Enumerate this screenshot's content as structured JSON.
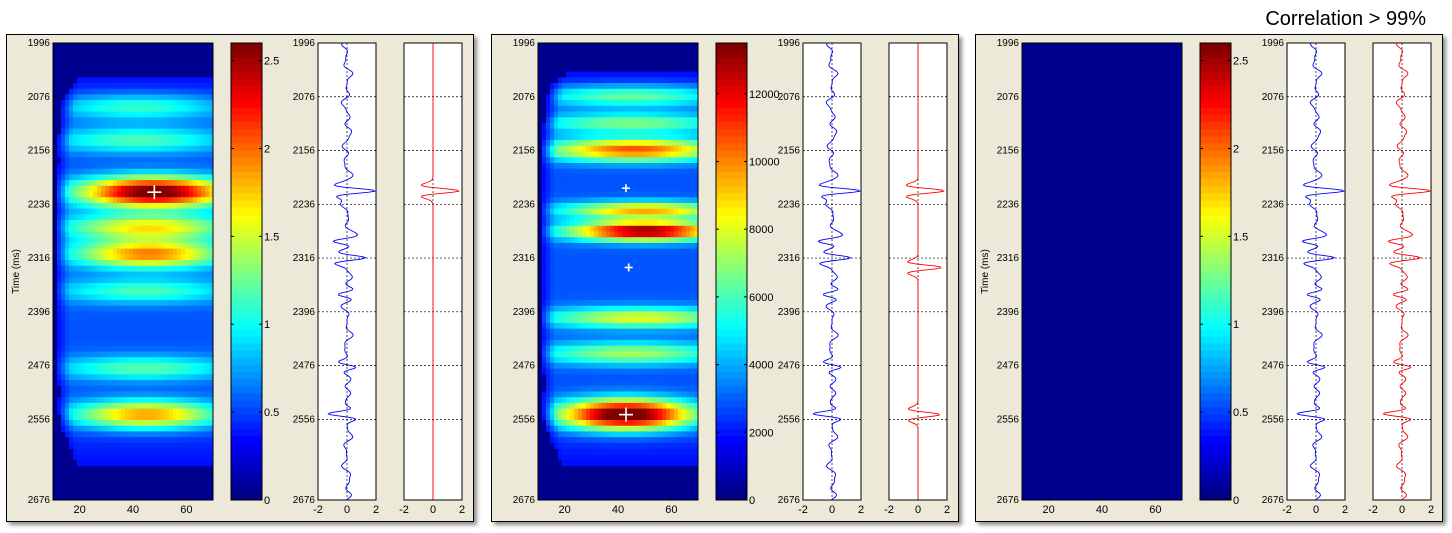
{
  "caption": "Correlation > 99%",
  "chart_data": [
    {
      "type": "heatmap",
      "title": "",
      "ylabel": "Time (ms)",
      "ylim": [
        1996,
        2676
      ],
      "y_ticks": [
        "1996",
        "2076",
        "2156",
        "2236",
        "2316",
        "2396",
        "2476",
        "2556",
        "2676"
      ],
      "xlim": [
        10,
        70
      ],
      "x_ticks": [
        "20",
        "40",
        "60"
      ],
      "colorbar": {
        "min": 0,
        "max": 2.6,
        "ticks": [
          "0",
          "0.5",
          "1",
          "1.5",
          "2",
          "2.5"
        ]
      },
      "blobs": [
        {
          "t": 2091,
          "x": 42,
          "amp": 0.75,
          "w": 25,
          "h": 14
        },
        {
          "t": 2140,
          "x": 42,
          "amp": 0.75,
          "w": 25,
          "h": 14
        },
        {
          "t": 2218,
          "x": 48,
          "amp": 2.45,
          "w": 20,
          "h": 16
        },
        {
          "t": 2270,
          "x": 46,
          "amp": 1.25,
          "w": 23,
          "h": 13
        },
        {
          "t": 2310,
          "x": 46,
          "amp": 1.6,
          "w": 20,
          "h": 15
        },
        {
          "t": 2365,
          "x": 44,
          "amp": 0.7,
          "w": 24,
          "h": 13
        },
        {
          "t": 2480,
          "x": 44,
          "amp": 0.75,
          "w": 24,
          "h": 13
        },
        {
          "t": 2549,
          "x": 45,
          "amp": 1.55,
          "w": 20,
          "h": 15
        }
      ],
      "markers": [
        {
          "x": 48,
          "t": 2218,
          "size": "large"
        }
      ],
      "traces": [
        {
          "color": "#0000ff",
          "xlim": [
            -2,
            2
          ],
          "x_ticks": [
            "-2",
            "0",
            "2"
          ],
          "events": [
            {
              "t": 2216,
              "a": 1.9,
              "w": 7
            },
            {
              "t": 2291,
              "a": -0.9,
              "w": 7
            },
            {
              "t": 2316,
              "a": 1.3,
              "w": 7
            },
            {
              "t": 2370,
              "a": -0.7,
              "w": 7
            },
            {
              "t": 2478,
              "a": 0.8,
              "w": 7
            },
            {
              "t": 2548,
              "a": -1.4,
              "w": 7
            }
          ],
          "noise": 0.35
        },
        {
          "color": "#ff0000",
          "xlim": [
            -2,
            2
          ],
          "x_ticks": [
            "-2",
            "0",
            "2"
          ],
          "events": [
            {
              "t": 2216,
              "a": 1.8,
              "w": 7
            }
          ],
          "noise": 0
        }
      ]
    },
    {
      "type": "heatmap",
      "title": "",
      "ylabel": "",
      "ylim": [
        1996,
        2676
      ],
      "y_ticks": [
        "1996",
        "2076",
        "2156",
        "2236",
        "2316",
        "2396",
        "2476",
        "2556",
        "2676"
      ],
      "xlim": [
        10,
        70
      ],
      "x_ticks": [
        "20",
        "40",
        "60"
      ],
      "colorbar": {
        "min": 0,
        "max": 13500,
        "ticks": [
          "0",
          "2000",
          "4000",
          "6000",
          "8000",
          "10000",
          "12000"
        ]
      },
      "blobs": [
        {
          "t": 2075,
          "x": 45,
          "amp": 4800,
          "w": 28,
          "h": 12
        },
        {
          "t": 2115,
          "x": 45,
          "amp": 4800,
          "w": 28,
          "h": 11
        },
        {
          "t": 2155,
          "x": 46,
          "amp": 9000,
          "w": 24,
          "h": 12
        },
        {
          "t": 2245,
          "x": 50,
          "amp": 7500,
          "w": 22,
          "h": 9
        },
        {
          "t": 2276,
          "x": 50,
          "amp": 12000,
          "w": 20,
          "h": 10
        },
        {
          "t": 2405,
          "x": 48,
          "amp": 6000,
          "w": 26,
          "h": 11
        },
        {
          "t": 2458,
          "x": 45,
          "amp": 5000,
          "w": 26,
          "h": 12
        },
        {
          "t": 2549,
          "x": 43,
          "amp": 13500,
          "w": 18,
          "h": 16
        }
      ],
      "markers": [
        {
          "x": 43,
          "t": 2212,
          "size": "small"
        },
        {
          "x": 44,
          "t": 2330,
          "size": "small"
        },
        {
          "x": 43,
          "t": 2549,
          "size": "large"
        }
      ],
      "traces": [
        {
          "color": "#0000ff",
          "xlim": [
            -2,
            2
          ],
          "x_ticks": [
            "-2",
            "0",
            "2"
          ],
          "events": [
            {
              "t": 2216,
              "a": 1.9,
              "w": 7
            },
            {
              "t": 2291,
              "a": -0.9,
              "w": 7
            },
            {
              "t": 2316,
              "a": 1.3,
              "w": 7
            },
            {
              "t": 2370,
              "a": -0.7,
              "w": 7
            },
            {
              "t": 2478,
              "a": 0.8,
              "w": 7
            },
            {
              "t": 2548,
              "a": -1.4,
              "w": 7
            }
          ],
          "noise": 0.35
        },
        {
          "color": "#ff0000",
          "xlim": [
            -2,
            2
          ],
          "x_ticks": [
            "-2",
            "0",
            "2"
          ],
          "events": [
            {
              "t": 2216,
              "a": 1.8,
              "w": 7
            },
            {
              "t": 2330,
              "a": 1.6,
              "w": 7
            },
            {
              "t": 2549,
              "a": 1.5,
              "w": 7
            }
          ],
          "noise": 0
        }
      ]
    },
    {
      "type": "heatmap",
      "title": "",
      "ylabel": "Time (ms)",
      "ylim": [
        1996,
        2676
      ],
      "y_ticks": [
        "1996",
        "2076",
        "2156",
        "2236",
        "2316",
        "2396",
        "2476",
        "2556",
        "2676"
      ],
      "xlim": [
        10,
        70
      ],
      "x_ticks": [
        "20",
        "40",
        "60"
      ],
      "colorbar": {
        "min": 0,
        "max": 2.6,
        "ticks": [
          "0",
          "0.5",
          "1",
          "1.5",
          "2",
          "2.5"
        ]
      },
      "blobs": [],
      "markers": [],
      "traces": [
        {
          "color": "#0000ff",
          "xlim": [
            -2,
            2
          ],
          "x_ticks": [
            "-2",
            "0",
            "2"
          ],
          "events": [
            {
              "t": 2216,
              "a": 1.9,
              "w": 7
            },
            {
              "t": 2291,
              "a": -0.9,
              "w": 7
            },
            {
              "t": 2316,
              "a": 1.3,
              "w": 7
            },
            {
              "t": 2370,
              "a": -0.7,
              "w": 7
            },
            {
              "t": 2478,
              "a": 0.8,
              "w": 7
            },
            {
              "t": 2548,
              "a": -1.4,
              "w": 7
            }
          ],
          "noise": 0.35
        },
        {
          "color": "#ff0000",
          "xlim": [
            -2,
            2
          ],
          "x_ticks": [
            "-2",
            "0",
            "2"
          ],
          "events": [
            {
              "t": 2216,
              "a": 1.9,
              "w": 7
            },
            {
              "t": 2291,
              "a": -0.9,
              "w": 7
            },
            {
              "t": 2316,
              "a": 1.3,
              "w": 7
            },
            {
              "t": 2370,
              "a": -0.7,
              "w": 7
            },
            {
              "t": 2478,
              "a": 0.8,
              "w": 7
            },
            {
              "t": 2548,
              "a": -1.4,
              "w": 7
            }
          ],
          "noise": 0.35
        }
      ]
    }
  ]
}
